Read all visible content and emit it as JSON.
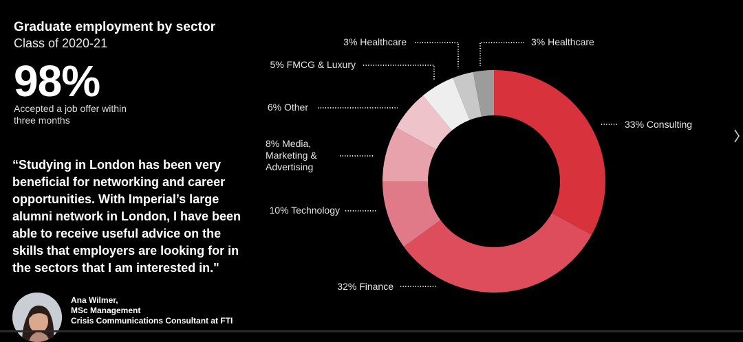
{
  "header": {
    "title": "Graduate employment by sector",
    "subtitle": "Class of 2020-21"
  },
  "stat": {
    "value": "98%",
    "caption": "Accepted a job offer within three months"
  },
  "quote": "“Studying in London has been very beneficial for networking and career opportunities. With Imperial’s large alumni network in London, I have been able to receive useful advice on the skills that employers are looking for in the sectors that I am interested in.\"",
  "author": {
    "name": "Ana Wilmer,",
    "degree": "MSc Management",
    "role": "Crisis Communications Consultant at FTI"
  },
  "colors": {
    "background": "#000000",
    "consulting": "#d8323c",
    "finance": "#de4d5c",
    "technology": "#e07a88",
    "media": "#e8a2ac",
    "other": "#efc3ca",
    "fmcg": "#eeeeee",
    "healthcare_a": "#c8c8c8",
    "healthcare_b": "#9c9c9c"
  },
  "icons": {
    "next": "chevron-right-icon"
  },
  "chart_data": {
    "type": "pie",
    "title": "Graduate employment by sector",
    "subtitle": "Class of 2020-21",
    "donut": true,
    "start_angle_deg": 0,
    "direction": "clockwise",
    "legend": "labels around chart with dotted leaders",
    "slices": [
      {
        "label": "33% Consulting",
        "value": 33,
        "color": "#d8323c"
      },
      {
        "label": "32% Finance",
        "value": 32,
        "color": "#de4d5c"
      },
      {
        "label": "10% Technology",
        "value": 10,
        "color": "#e07a88"
      },
      {
        "label": "8% Media, Marketing & Advertising",
        "label_lines": [
          "8% Media,",
          "Marketing &",
          "Advertising"
        ],
        "value": 8,
        "color": "#e8a2ac"
      },
      {
        "label": "6% Other",
        "value": 6,
        "color": "#efc3ca"
      },
      {
        "label": "5% FMCG & Luxury",
        "value": 5,
        "color": "#eeeeee"
      },
      {
        "label": "3% Healthcare",
        "value": 3,
        "color": "#c8c8c8"
      },
      {
        "label": "3% Healthcare",
        "value": 3,
        "color": "#9c9c9c"
      }
    ]
  }
}
